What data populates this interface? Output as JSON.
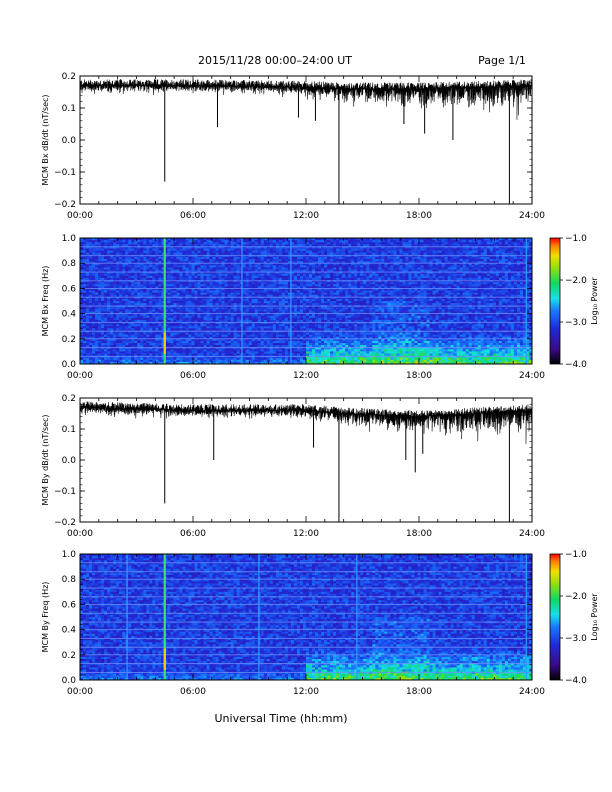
{
  "header": {
    "title": "2015/11/28  00:00–24:00 UT",
    "page": "Page 1/1"
  },
  "footer": {
    "xlabel": "Universal Time (hh:mm)"
  },
  "colorbar": {
    "label": "Log₁₀ Power",
    "ticks": [
      "−1.0",
      "−2.0",
      "−3.0",
      "−4.0"
    ],
    "range": [
      -4.0,
      -1.0
    ]
  },
  "chart_data": [
    {
      "type": "line",
      "title": "",
      "ylabel": "MCM Bx dB/dt (nT/sec)",
      "xlabel": "",
      "x_ticks": [
        "00:00",
        "06:00",
        "12:00",
        "18:00",
        "24:00"
      ],
      "xlim": [
        0,
        24
      ],
      "y_ticks": [
        "0.2",
        "0.1",
        "0.0",
        "−0.1",
        "−0.2"
      ],
      "ylim": [
        -0.2,
        0.2
      ],
      "baseline": [
        [
          0,
          0.17
        ],
        [
          6,
          0.17
        ],
        [
          12,
          0.165
        ],
        [
          14,
          0.16
        ],
        [
          18,
          0.16
        ],
        [
          24,
          0.17
        ]
      ],
      "spikes": [
        [
          4.5,
          -0.13
        ],
        [
          7.3,
          0.04
        ],
        [
          11.6,
          0.07
        ],
        [
          12.5,
          0.06
        ],
        [
          13.75,
          -0.2
        ],
        [
          17.2,
          0.05
        ],
        [
          18.3,
          0.02
        ],
        [
          19.8,
          0.0
        ],
        [
          22.8,
          -0.2
        ]
      ]
    },
    {
      "type": "heatmap",
      "title": "",
      "ylabel": "MCM Bx Freq (Hz)",
      "xlabel": "",
      "x_ticks": [
        "00:00",
        "06:00",
        "12:00",
        "18:00",
        "24:00"
      ],
      "xlim": [
        0,
        24
      ],
      "y_ticks": [
        "1.0",
        "0.8",
        "0.6",
        "0.4",
        "0.2",
        "0.0"
      ],
      "ylim": [
        0.0,
        1.0
      ],
      "value_range": [
        -4.0,
        -1.0
      ],
      "harmonic_lines_hz": [
        0.06,
        0.13,
        0.2,
        0.26,
        0.33,
        0.4,
        0.46,
        0.53,
        0.6,
        0.66,
        0.73,
        0.8,
        0.86,
        0.93
      ],
      "broadband_events_hr": [
        4.5,
        8.6,
        11.2,
        23.7
      ],
      "enhanced_activity_hr": [
        12,
        24
      ]
    },
    {
      "type": "line",
      "title": "",
      "ylabel": "MCM By dB/dt (nT/sec)",
      "xlabel": "",
      "x_ticks": [
        "00:00",
        "06:00",
        "12:00",
        "18:00",
        "24:00"
      ],
      "xlim": [
        0,
        24
      ],
      "y_ticks": [
        "0.2",
        "0.1",
        "0.0",
        "−0.1",
        "−0.2"
      ],
      "ylim": [
        -0.2,
        0.2
      ],
      "baseline": [
        [
          0,
          0.17
        ],
        [
          6,
          0.16
        ],
        [
          12,
          0.16
        ],
        [
          14,
          0.15
        ],
        [
          18,
          0.14
        ],
        [
          24,
          0.16
        ]
      ],
      "spikes": [
        [
          4.5,
          -0.14
        ],
        [
          7.1,
          0.0
        ],
        [
          12.4,
          0.04
        ],
        [
          13.75,
          -0.2
        ],
        [
          17.3,
          0.0
        ],
        [
          17.8,
          -0.04
        ],
        [
          18.2,
          0.02
        ],
        [
          22.8,
          -0.2
        ]
      ]
    },
    {
      "type": "heatmap",
      "title": "",
      "ylabel": "MCM By Freq (Hz)",
      "xlabel": "",
      "x_ticks": [
        "00:00",
        "06:00",
        "12:00",
        "18:00",
        "24:00"
      ],
      "xlim": [
        0,
        24
      ],
      "y_ticks": [
        "1.0",
        "0.8",
        "0.6",
        "0.4",
        "0.2",
        "0.0"
      ],
      "ylim": [
        0.0,
        1.0
      ],
      "value_range": [
        -4.0,
        -1.0
      ],
      "harmonic_lines_hz": [
        0.06,
        0.13,
        0.2,
        0.26,
        0.33,
        0.4,
        0.46,
        0.53,
        0.6,
        0.66,
        0.73,
        0.8,
        0.86,
        0.93
      ],
      "broadband_events_hr": [
        2.5,
        4.5,
        9.5,
        14.7,
        23.7
      ],
      "enhanced_activity_hr": [
        12,
        24
      ]
    }
  ]
}
